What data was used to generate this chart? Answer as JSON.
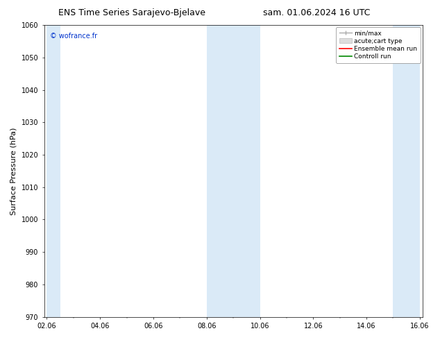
{
  "title_left": "ENS Time Series Sarajevo-Bjelave",
  "title_right": "sam. 01.06.2024 16 UTC",
  "ylabel": "Surface Pressure (hPa)",
  "ylim": [
    970,
    1060
  ],
  "yticks": [
    970,
    980,
    990,
    1000,
    1010,
    1020,
    1030,
    1040,
    1050,
    1060
  ],
  "xlabel_ticks": [
    "02.06",
    "04.06",
    "06.06",
    "08.06",
    "10.06",
    "12.06",
    "14.06",
    "16.06"
  ],
  "watermark": "© wofrance.fr",
  "watermark_color": "#0033cc",
  "bg_color": "#ffffff",
  "plot_bg_color": "#ffffff",
  "shade_color": "#daeaf7",
  "shade_data": [
    [
      0.0,
      0.5
    ],
    [
      6.0,
      8.0
    ],
    [
      13.0,
      14.0
    ]
  ],
  "legend_items": [
    {
      "label": "min/max",
      "color": "#aaaaaa",
      "type": "errorbar"
    },
    {
      "label": "acute;cart type",
      "color": "#cccccc",
      "type": "bar"
    },
    {
      "label": "Ensemble mean run",
      "color": "#ff0000",
      "type": "line"
    },
    {
      "label": "Controll run",
      "color": "#008800",
      "type": "line"
    }
  ],
  "title_fontsize": 9,
  "tick_fontsize": 7,
  "ylabel_fontsize": 8,
  "legend_fontsize": 6.5,
  "watermark_fontsize": 7
}
